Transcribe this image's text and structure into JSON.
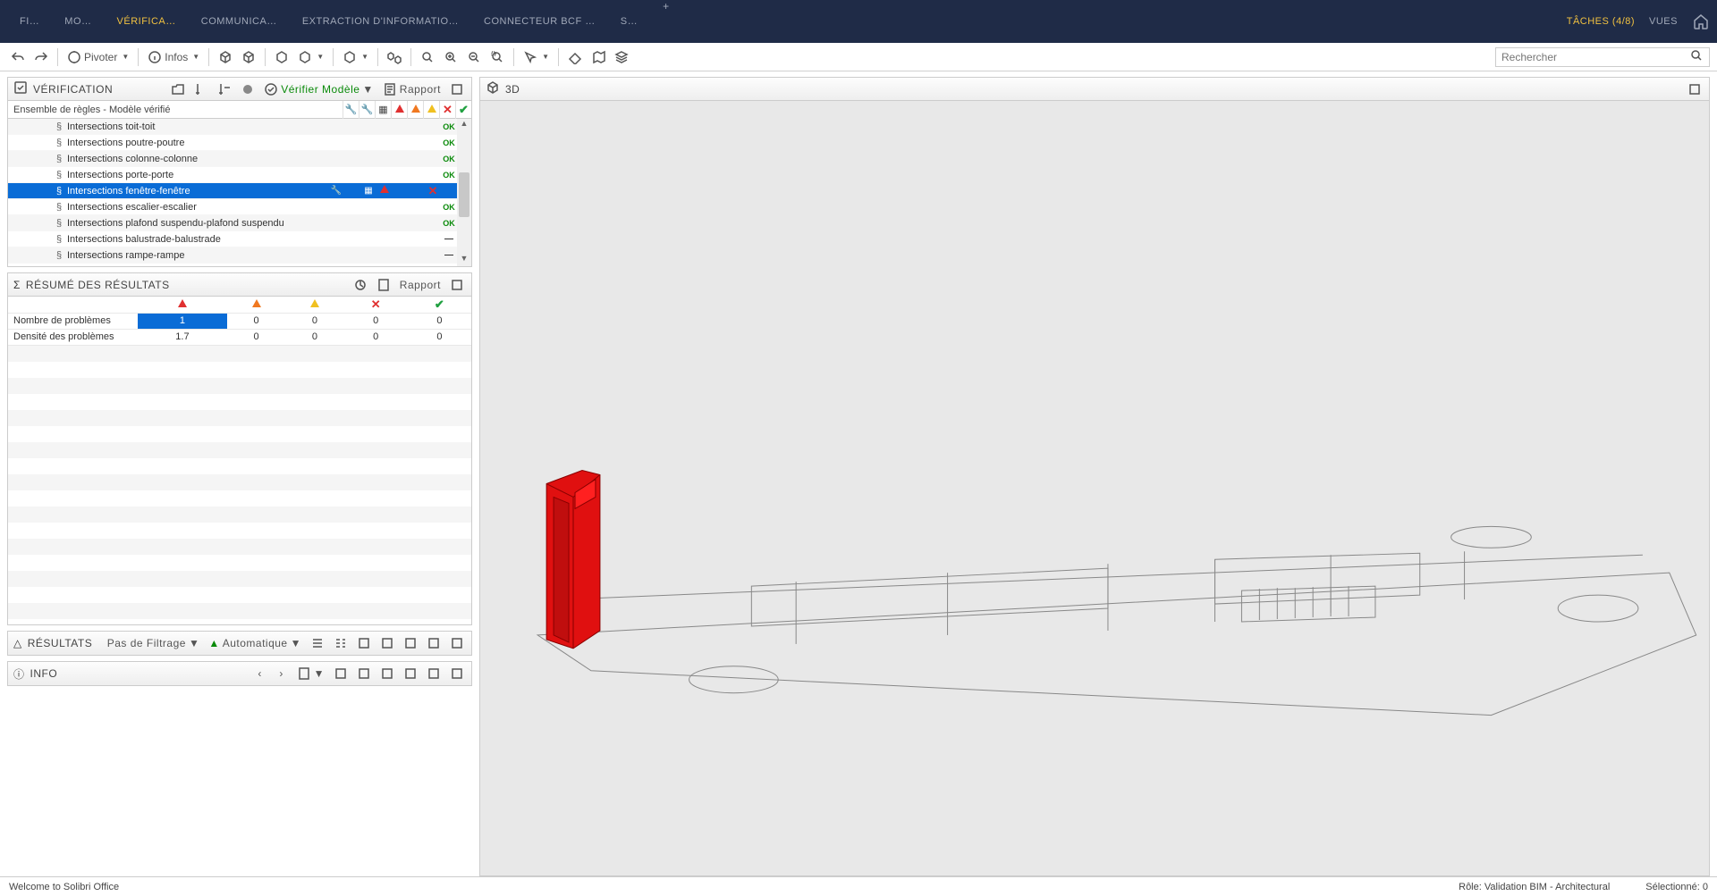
{
  "menubar": {
    "tabs": [
      {
        "label": "FI…",
        "active": false
      },
      {
        "label": "MO…",
        "active": false
      },
      {
        "label": "VÉRIFICA…",
        "active": true
      },
      {
        "label": "COMMUNICA…",
        "active": false
      },
      {
        "label": "EXTRACTION D'INFORMATIO…",
        "active": false
      },
      {
        "label": "CONNECTEUR BCF …",
        "active": false
      },
      {
        "label": "S…",
        "active": false
      }
    ],
    "taches": "TÂCHES  (4/8)",
    "vues": "VUES"
  },
  "toolbar": {
    "pivoter": "Pivoter",
    "infos": "Infos",
    "search_placeholder": "Rechercher"
  },
  "verification_panel": {
    "title": "VÉRIFICATION",
    "verifier": "Vérifier Modèle",
    "rapport": "Rapport",
    "subhead": "Ensemble de règles - Modèle vérifié",
    "rules": [
      {
        "name": "Intersections toit-toit",
        "status": "OK"
      },
      {
        "name": "Intersections poutre-poutre",
        "status": "OK"
      },
      {
        "name": "Intersections colonne-colonne",
        "status": "OK"
      },
      {
        "name": "Intersections porte-porte",
        "status": "OK"
      },
      {
        "name": "Intersections fenêtre-fenêtre",
        "status": "ERROR",
        "selected": true
      },
      {
        "name": "Intersections escalier-escalier",
        "status": "OK"
      },
      {
        "name": "Intersections plafond suspendu-plafond suspendu",
        "status": "OK"
      },
      {
        "name": "Intersections balustrade-balustrade",
        "status": "DASH"
      },
      {
        "name": "Intersections rampe-rampe",
        "status": "DASH"
      }
    ]
  },
  "summary_panel": {
    "title": "RÉSUMÉ DES RÉSULTATS",
    "rapport": "Rapport",
    "rows": [
      {
        "label": "Nombre de problèmes",
        "v": [
          "1",
          "0",
          "0",
          "0",
          "0"
        ],
        "hl": 0
      },
      {
        "label": "Densité des problèmes",
        "v": [
          "1.7",
          "0",
          "0",
          "0",
          "0"
        ]
      }
    ]
  },
  "results_panel": {
    "title": "RÉSULTATS",
    "filter": "Pas de Filtrage",
    "auto": "Automatique"
  },
  "info_panel": {
    "title": "INFO"
  },
  "viewport_panel": {
    "title": "3D"
  },
  "statusbar": {
    "welcome": "Welcome to Solibri Office",
    "role": "Rôle: Validation BIM - Architectural",
    "selection": "Sélectionné: 0"
  },
  "colors": {
    "menubar_bg": "#1f2b47",
    "accent_yellow": "#f0c040",
    "selection_blue": "#0a6cd6",
    "ok_green": "#0a8a0a",
    "error_red": "#e03030",
    "viewport_bg": "#e8e8e8",
    "object_red": "#e01010"
  }
}
